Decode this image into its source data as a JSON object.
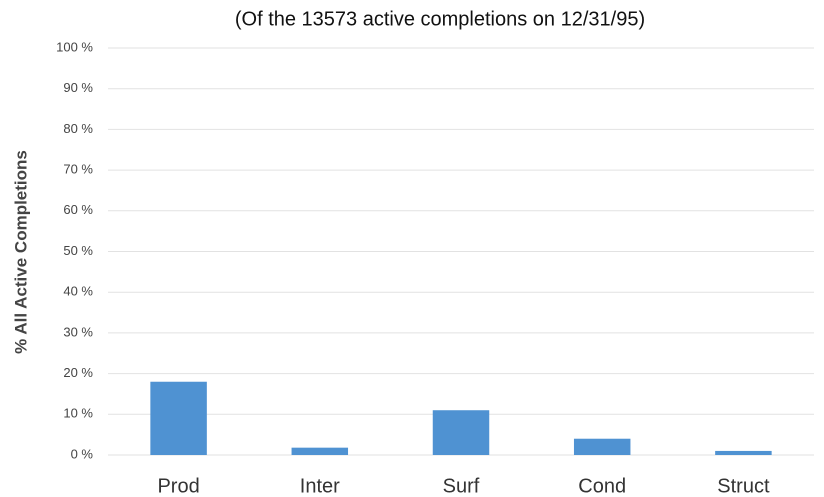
{
  "chart_data": {
    "type": "bar",
    "title": "(Of the 13573 active completions on 12/31/95)",
    "y_label": "% All Active Completions",
    "categories": [
      "Prod",
      "Inter",
      "Surf",
      "Cond",
      "Struct"
    ],
    "values": [
      18,
      1.8,
      11,
      4,
      1
    ],
    "color": "#4f92d2",
    "ylim": [
      0,
      100
    ],
    "yticks": [
      {
        "value": 0,
        "label": "0 %"
      },
      {
        "value": 10,
        "label": "10 %"
      },
      {
        "value": 20,
        "label": "20 %"
      },
      {
        "value": 30,
        "label": "30 %"
      },
      {
        "value": 40,
        "label": "40 %"
      },
      {
        "value": 50,
        "label": "50 %"
      },
      {
        "value": 60,
        "label": "60 %"
      },
      {
        "value": 70,
        "label": "70 %"
      },
      {
        "value": 80,
        "label": "80 %"
      },
      {
        "value": 90,
        "label": "90 %"
      },
      {
        "value": 100,
        "label": "100 %"
      }
    ],
    "grid": true
  }
}
